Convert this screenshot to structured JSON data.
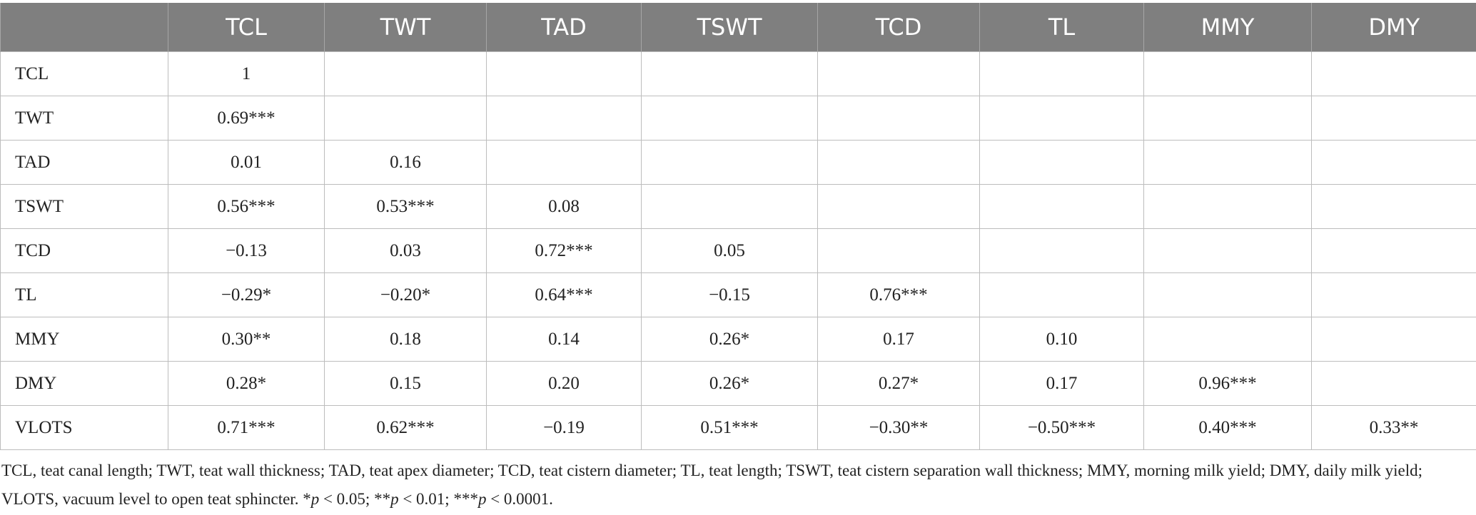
{
  "table": {
    "columns": [
      "TCL",
      "TWT",
      "TAD",
      "TSWT",
      "TCD",
      "TL",
      "MMY",
      "DMY"
    ],
    "rows": [
      {
        "label": "TCL",
        "values": [
          "1"
        ]
      },
      {
        "label": "TWT",
        "values": [
          "0.69***"
        ]
      },
      {
        "label": "TAD",
        "values": [
          "0.01",
          "0.16"
        ]
      },
      {
        "label": "TSWT",
        "values": [
          "0.56***",
          "0.53***",
          "0.08"
        ]
      },
      {
        "label": "TCD",
        "values": [
          "−0.13",
          "0.03",
          "0.72***",
          "0.05"
        ]
      },
      {
        "label": "TL",
        "values": [
          "−0.29*",
          "−0.20*",
          "0.64***",
          "−0.15",
          "0.76***"
        ]
      },
      {
        "label": "MMY",
        "values": [
          "0.30**",
          "0.18",
          "0.14",
          "0.26*",
          "0.17",
          "0.10"
        ]
      },
      {
        "label": "DMY",
        "values": [
          "0.28*",
          "0.15",
          "0.20",
          "0.26*",
          "0.27*",
          "0.17",
          "0.96***"
        ]
      },
      {
        "label": "VLOTS",
        "values": [
          "0.71***",
          "0.62***",
          "−0.19",
          "0.51***",
          "−0.30**",
          "−0.50***",
          "0.40***",
          "0.33**"
        ]
      }
    ]
  },
  "footnote": [
    "TCL, teat canal length; TWT, teat wall thickness; TAD, teat apex diameter; TCD, teat cistern diameter; TL, teat length; TSWT, teat cistern separation wall thickness; MMY, morning milk yield; DMY, daily milk yield; VLOTS, vacuum level to open teat sphincter. *",
    "p",
    " < 0.05; **",
    "p",
    " < 0.01; ***",
    "p",
    " < 0.0001."
  ]
}
